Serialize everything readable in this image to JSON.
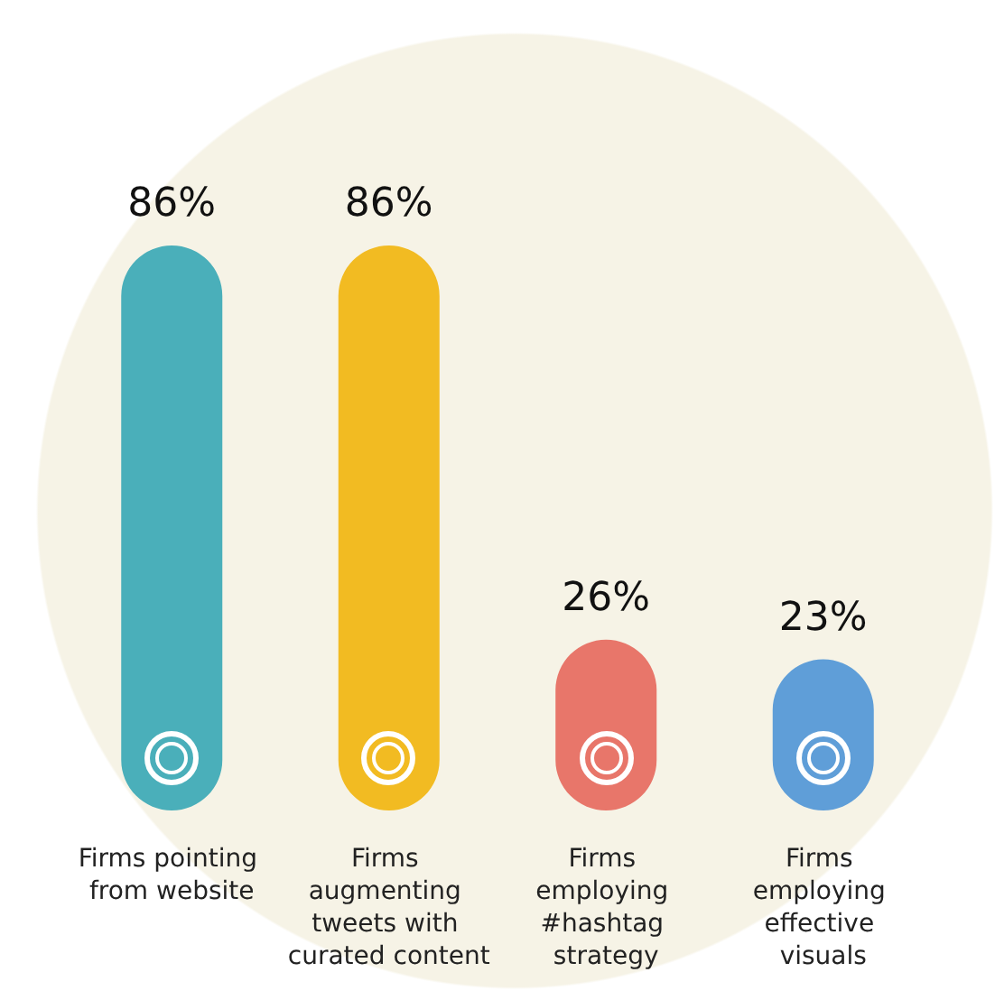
{
  "chart_data": {
    "type": "bar",
    "categories": [
      "Firms pointing from website",
      "Firms augmenting tweets with curated content",
      "Firms employing #hashtag strategy",
      "Firms employing effective visuals"
    ],
    "values": [
      86,
      86,
      26,
      23
    ],
    "colors": [
      "#4aafba",
      "#f2bb22",
      "#e8766a",
      "#5f9ed8"
    ],
    "value_labels": [
      "86%",
      "86%",
      "26%",
      "23%"
    ]
  }
}
